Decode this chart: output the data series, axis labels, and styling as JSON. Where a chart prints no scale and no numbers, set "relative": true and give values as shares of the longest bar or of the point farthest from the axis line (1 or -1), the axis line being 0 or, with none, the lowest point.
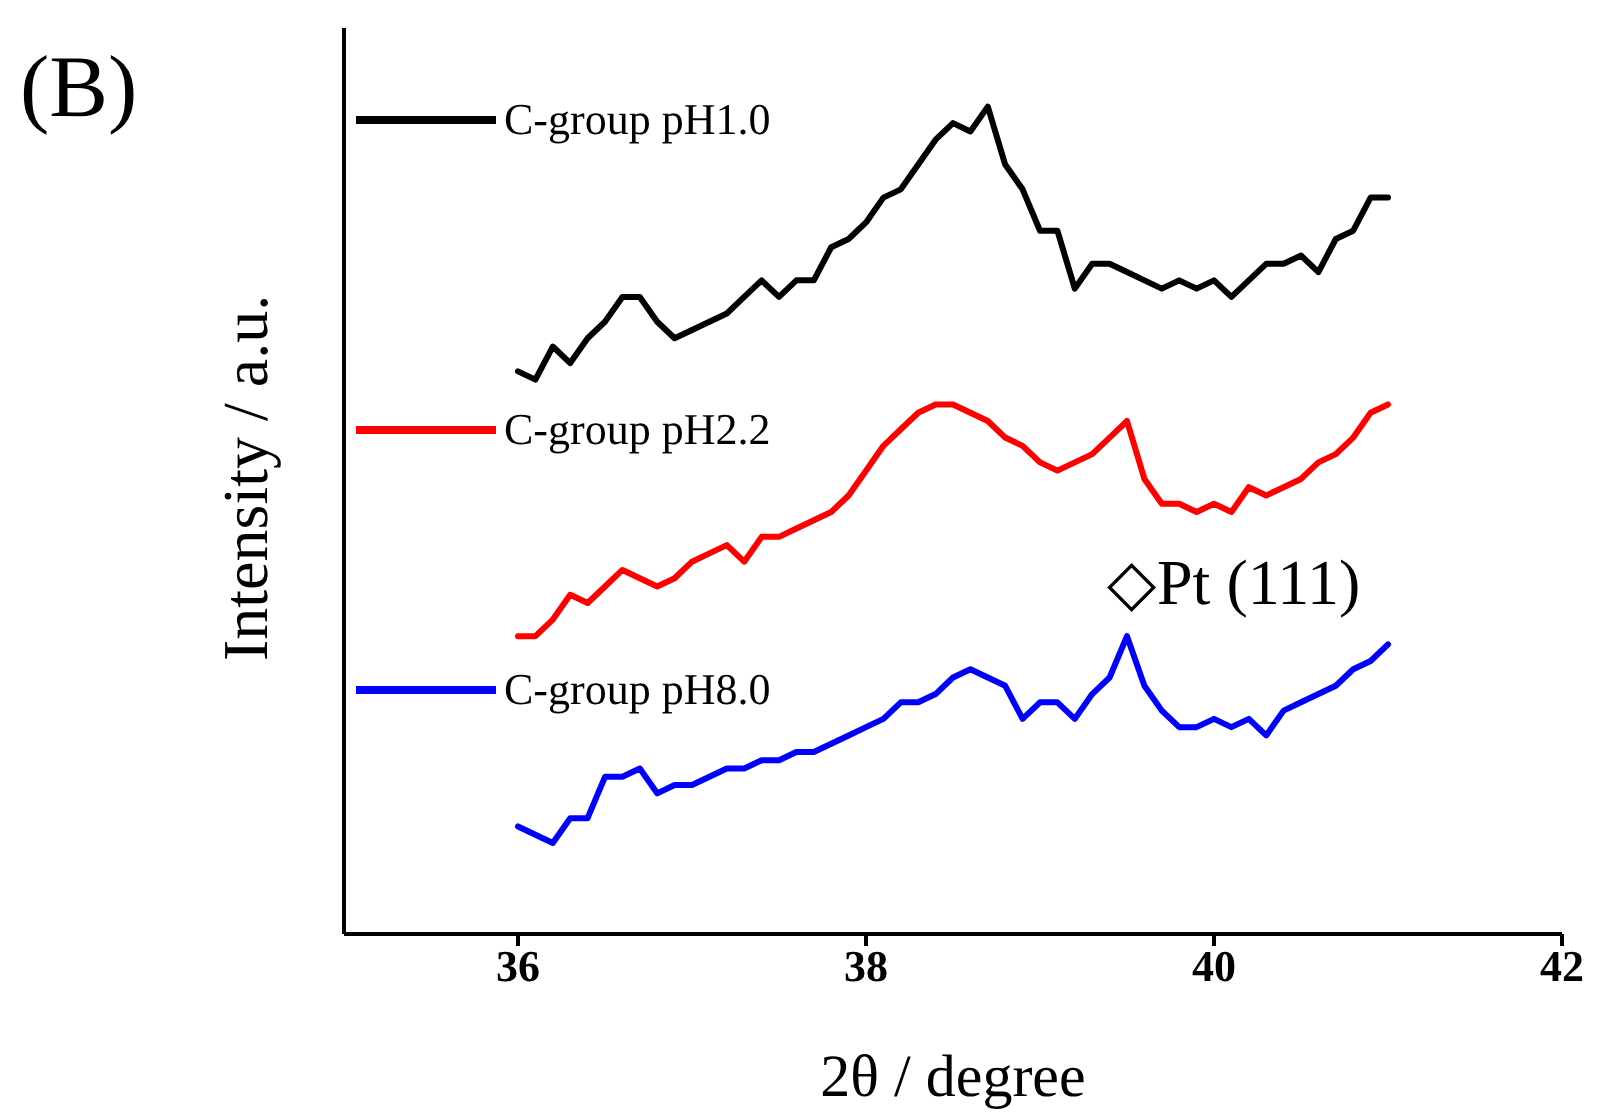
{
  "chart_data": {
    "type": "line",
    "xlabel": "2θ / degree",
    "ylabel": "Intensity / a.u.",
    "relative": true,
    "x": [
      36,
      36.1,
      36.2,
      36.3,
      36.4,
      36.5,
      36.6,
      36.7,
      36.8,
      36.9,
      37,
      37.1,
      37.2,
      37.3,
      37.4,
      37.5,
      37.6,
      37.7,
      37.8,
      37.9,
      38,
      38.1,
      38.2,
      38.3,
      38.4,
      38.5,
      38.6,
      38.7,
      38.8,
      38.9,
      39,
      39.1,
      39.2,
      39.3,
      39.4,
      39.5,
      39.6,
      39.7,
      39.8,
      39.9,
      40,
      40.1,
      40.2,
      40.3,
      40.4,
      40.5,
      40.6,
      40.7,
      40.8,
      40.9,
      41
    ],
    "series": [
      {
        "name": "C-group pH1.0",
        "color": "#000000",
        "values": [
          0.68,
          0.67,
          0.71,
          0.69,
          0.72,
          0.74,
          0.77,
          0.77,
          0.74,
          0.72,
          0.73,
          0.74,
          0.75,
          0.77,
          0.79,
          0.77,
          0.79,
          0.79,
          0.83,
          0.84,
          0.86,
          0.89,
          0.9,
          0.93,
          0.96,
          0.98,
          0.97,
          1.0,
          0.93,
          0.9,
          0.85,
          0.85,
          0.78,
          0.81,
          0.81,
          0.8,
          0.79,
          0.78,
          0.79,
          0.78,
          0.79,
          0.77,
          0.79,
          0.81,
          0.81,
          0.82,
          0.8,
          0.84,
          0.85,
          0.89,
          0.89
        ]
      },
      {
        "name": "C-group pH2.2",
        "color": "#ff0000",
        "values": [
          0.36,
          0.36,
          0.38,
          0.41,
          0.4,
          0.42,
          0.44,
          0.43,
          0.42,
          0.43,
          0.45,
          0.46,
          0.47,
          0.45,
          0.48,
          0.48,
          0.49,
          0.5,
          0.51,
          0.53,
          0.56,
          0.59,
          0.61,
          0.63,
          0.64,
          0.64,
          0.63,
          0.62,
          0.6,
          0.59,
          0.57,
          0.56,
          0.57,
          0.58,
          0.6,
          0.62,
          0.55,
          0.52,
          0.52,
          0.51,
          0.52,
          0.51,
          0.54,
          0.53,
          0.54,
          0.55,
          0.57,
          0.58,
          0.6,
          0.63,
          0.64
        ]
      },
      {
        "name": "C-group pH8.0",
        "color": "#0000ff",
        "values": [
          0.13,
          0.12,
          0.11,
          0.14,
          0.14,
          0.19,
          0.19,
          0.2,
          0.17,
          0.18,
          0.18,
          0.19,
          0.2,
          0.2,
          0.21,
          0.21,
          0.22,
          0.22,
          0.23,
          0.24,
          0.25,
          0.26,
          0.28,
          0.28,
          0.29,
          0.31,
          0.32,
          0.31,
          0.3,
          0.26,
          0.28,
          0.28,
          0.26,
          0.29,
          0.31,
          0.36,
          0.3,
          0.27,
          0.25,
          0.25,
          0.26,
          0.25,
          0.26,
          0.24,
          0.27,
          0.28,
          0.29,
          0.3,
          0.32,
          0.33,
          0.35
        ]
      }
    ],
    "xlim": [
      35,
      42
    ],
    "xticks": [
      36,
      38,
      40,
      42
    ],
    "legend": "top left",
    "marker": "none",
    "line_style": "solid",
    "annotations": [
      "(B)",
      {
        "text": "◇Pt (111)",
        "x": 39.5,
        "y": 0.36
      }
    ]
  }
}
